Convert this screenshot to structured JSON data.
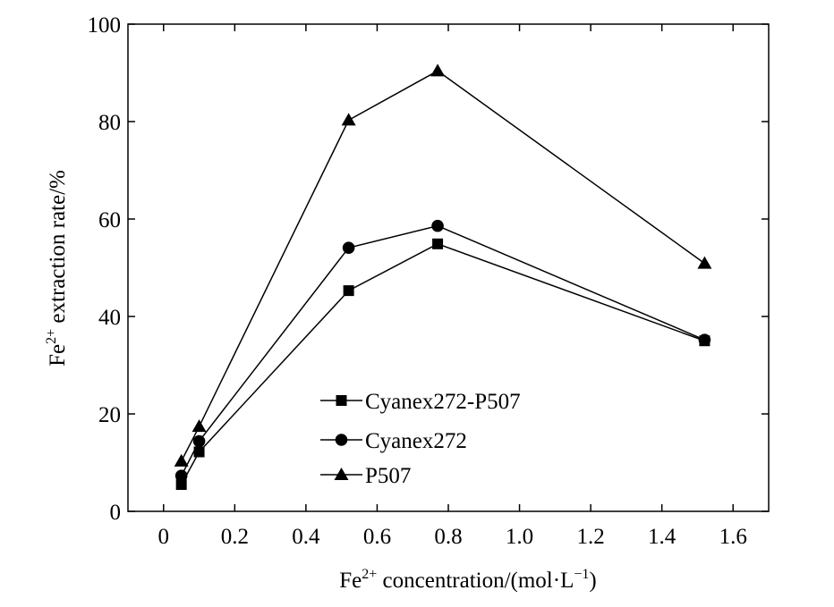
{
  "chart_data": {
    "type": "line",
    "xlabel": {
      "base": "Fe",
      "sup": "2+",
      "rest": " concentration/(mol·L",
      "sup2": "−1",
      "end": ")"
    },
    "ylabel": {
      "base": "Fe",
      "sup": "2+",
      "rest": " extraction rate/%"
    },
    "xlim": [
      -0.1,
      1.7
    ],
    "ylim": [
      0,
      100
    ],
    "xticks": [
      0,
      0.2,
      0.4,
      0.6,
      0.8,
      1.0,
      1.2,
      1.4,
      1.6
    ],
    "xtick_labels": [
      "0",
      "0.2",
      "0.4",
      "0.6",
      "0.8",
      "1.0",
      "1.2",
      "1.4",
      "1.6"
    ],
    "yticks": [
      0,
      20,
      40,
      60,
      80,
      100
    ],
    "ytick_labels": [
      "0",
      "20",
      "40",
      "60",
      "80",
      "100"
    ],
    "grid": false,
    "legend_position": "bottom-center",
    "series": [
      {
        "name": "Cyanex272-P507",
        "marker": "square",
        "x": [
          0.05,
          0.1,
          0.52,
          0.77,
          1.52
        ],
        "y": [
          5.5,
          12.2,
          45.3,
          54.9,
          35.0
        ]
      },
      {
        "name": "Cyanex272",
        "marker": "circle",
        "x": [
          0.05,
          0.1,
          0.52,
          0.77,
          1.52
        ],
        "y": [
          7.3,
          14.4,
          54.1,
          58.6,
          35.2
        ]
      },
      {
        "name": "P507",
        "marker": "triangle",
        "x": [
          0.05,
          0.1,
          0.52,
          0.77,
          1.52
        ],
        "y": [
          10.3,
          17.4,
          80.3,
          90.4,
          50.9
        ]
      }
    ],
    "color": "#000000"
  }
}
